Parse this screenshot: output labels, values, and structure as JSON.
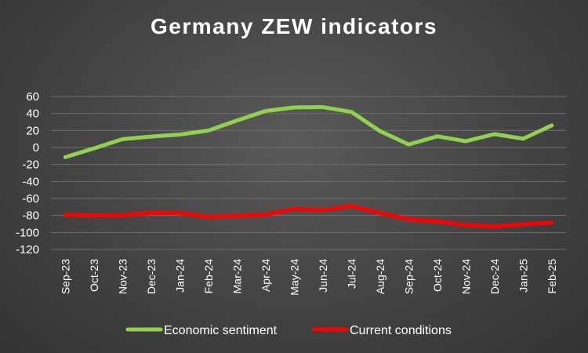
{
  "chart_data": {
    "type": "line",
    "title": "Germany ZEW indicators",
    "categories": [
      "Sep-23",
      "Oct-23",
      "Nov-23",
      "Dec-23",
      "Jan-24",
      "Feb-24",
      "Mar-24",
      "Apr-24",
      "May-24",
      "Jun-24",
      "Jul-24",
      "Aug-24",
      "Sep-24",
      "Oct-24",
      "Nov-24",
      "Dec-24",
      "Jan-25",
      "Feb-25"
    ],
    "series": [
      {
        "name": "Economic sentiment",
        "color": "#92d050",
        "values": [
          -11.4,
          -1.1,
          9.8,
          12.8,
          15.2,
          19.9,
          31.7,
          42.9,
          47.1,
          47.5,
          41.8,
          19.2,
          3.6,
          13.1,
          7.4,
          15.7,
          10.3,
          26.0
        ]
      },
      {
        "name": "Current conditions",
        "color": "#ff0000",
        "values": [
          -79.4,
          -79.9,
          -79.8,
          -77.1,
          -77.3,
          -81.7,
          -80.5,
          -79.2,
          -72.3,
          -73.8,
          -68.9,
          -77.3,
          -84.5,
          -86.9,
          -91.4,
          -93.1,
          -90.4,
          -88.5
        ]
      }
    ],
    "ylim": [
      -120,
      60
    ],
    "yticks": [
      60,
      40,
      20,
      0,
      -20,
      -40,
      -60,
      -80,
      -100,
      -120
    ],
    "grid": true,
    "legend_position": "bottom"
  }
}
